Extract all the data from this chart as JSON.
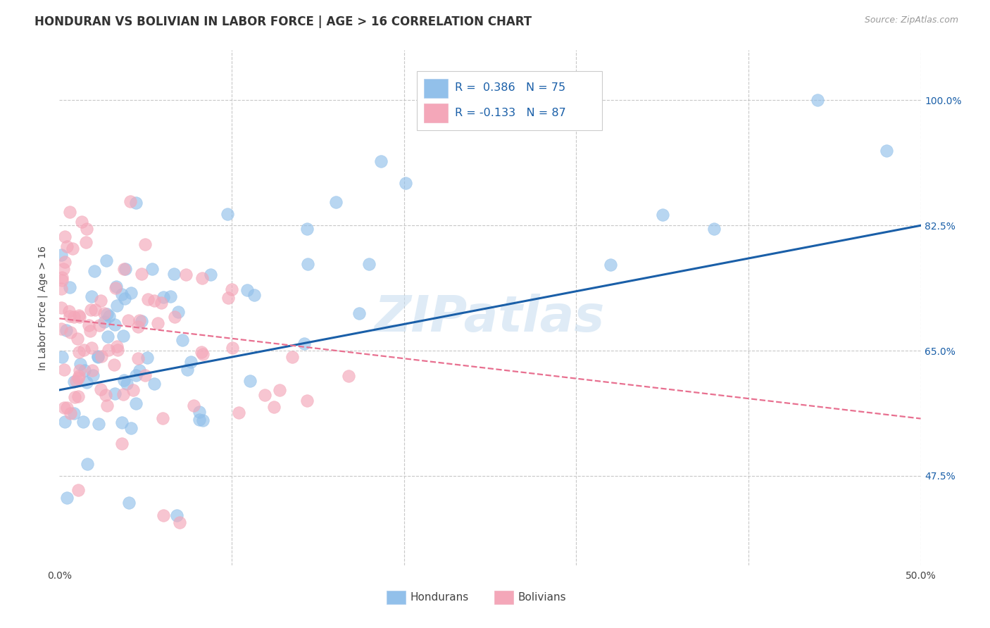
{
  "title": "HONDURAN VS BOLIVIAN IN LABOR FORCE | AGE > 16 CORRELATION CHART",
  "source": "Source: ZipAtlas.com",
  "ylabel": "In Labor Force | Age > 16",
  "xlim": [
    0.0,
    0.5
  ],
  "ylim": [
    0.35,
    1.07
  ],
  "ytick_vals": [
    0.475,
    0.65,
    0.825,
    1.0
  ],
  "ytick_labels": [
    "47.5%",
    "65.0%",
    "82.5%",
    "100.0%"
  ],
  "xtick_vals": [
    0.0,
    0.1,
    0.2,
    0.3,
    0.4,
    0.5
  ],
  "xtick_labels": [
    "0.0%",
    "",
    "",
    "",
    "",
    "50.0%"
  ],
  "honduran_color": "#92c0ea",
  "bolivian_color": "#f4a7b9",
  "trend_honduran_color": "#1a5fa8",
  "trend_bolivian_color": "#e87090",
  "background_color": "#ffffff",
  "grid_color": "#c8c8c8",
  "watermark": "ZIPatlas",
  "title_fontsize": 12,
  "axis_label_fontsize": 10,
  "tick_fontsize": 10,
  "n_hondurans": 75,
  "n_bolivians": 87,
  "R_hondurans": 0.386,
  "R_bolivians": -0.133,
  "trend_h_x0": 0.0,
  "trend_h_y0": 0.595,
  "trend_h_x1": 0.5,
  "trend_h_y1": 0.825,
  "trend_b_x0": 0.0,
  "trend_b_y0": 0.695,
  "trend_b_x1": 0.5,
  "trend_b_y1": 0.555
}
